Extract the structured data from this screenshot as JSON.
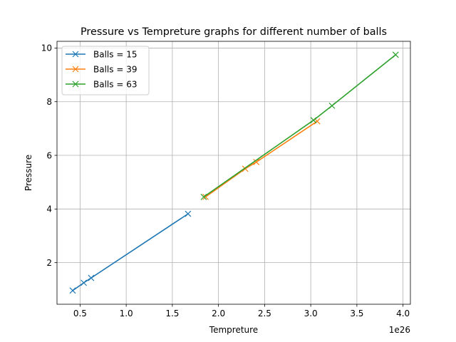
{
  "chart_data": {
    "type": "line",
    "title": "Pressure vs Tempreture graphs for different number of balls",
    "xlabel": "Tempreture",
    "ylabel": "Pressure",
    "x_offset_label": "1e26",
    "xlim": [
      0.25,
      4.08
    ],
    "ylim": [
      0.45,
      10.25
    ],
    "x_ticks": [
      0.5,
      1.0,
      1.5,
      2.0,
      2.5,
      3.0,
      3.5,
      4.0
    ],
    "x_tick_labels": [
      "0.5",
      "1.0",
      "1.5",
      "2.0",
      "2.5",
      "3.0",
      "3.5",
      "4.0"
    ],
    "y_ticks": [
      2,
      4,
      6,
      8,
      10
    ],
    "y_tick_labels": [
      "2",
      "4",
      "6",
      "8",
      "10"
    ],
    "grid": true,
    "legend_position": "upper-left",
    "marker": "x",
    "series": [
      {
        "name": "Balls = 15",
        "color": "#1f77b4",
        "points": [
          [
            0.42,
            0.96
          ],
          [
            0.54,
            1.25
          ],
          [
            0.62,
            1.43
          ],
          [
            1.67,
            3.82
          ]
        ]
      },
      {
        "name": "Balls = 39",
        "color": "#ff7f0e",
        "points": [
          [
            1.86,
            4.45
          ],
          [
            2.29,
            5.5
          ],
          [
            2.41,
            5.75
          ],
          [
            3.07,
            7.27
          ]
        ]
      },
      {
        "name": "Balls = 63",
        "color": "#2ca02c",
        "points": [
          [
            1.84,
            4.45
          ],
          [
            3.03,
            7.31
          ],
          [
            3.23,
            7.85
          ],
          [
            3.92,
            9.75
          ]
        ]
      }
    ]
  }
}
